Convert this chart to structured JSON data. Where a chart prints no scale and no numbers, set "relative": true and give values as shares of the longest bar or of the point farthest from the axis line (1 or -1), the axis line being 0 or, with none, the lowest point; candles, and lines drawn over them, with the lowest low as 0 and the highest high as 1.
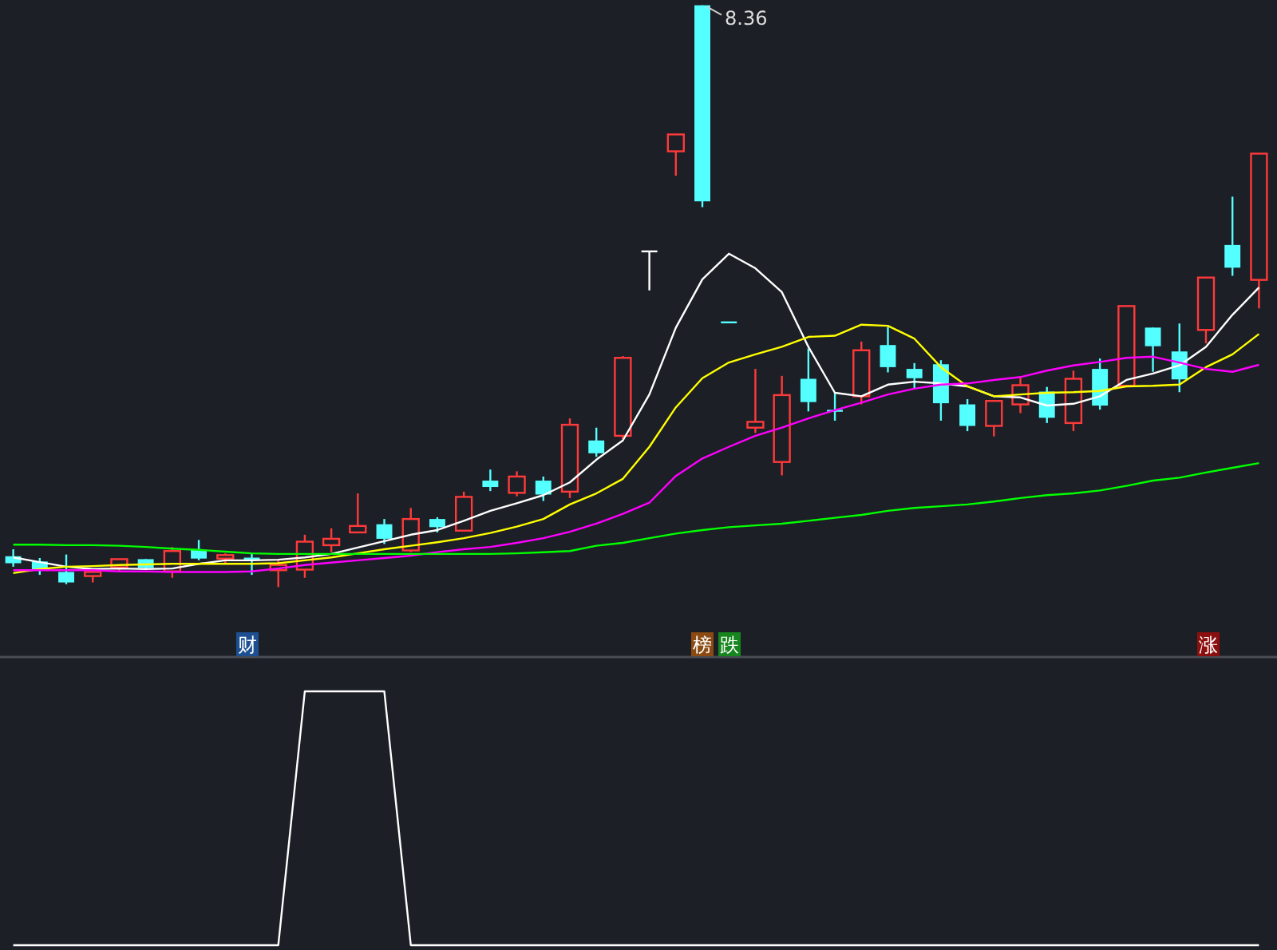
{
  "chart_data": [
    {
      "type": "candlestick",
      "relative": true,
      "categories": [
        null,
        null,
        null,
        null,
        null,
        null,
        null,
        null,
        null,
        null,
        null,
        null,
        null,
        null,
        null,
        null,
        null,
        null,
        null,
        null,
        null,
        null,
        null,
        null,
        null,
        null,
        null,
        null,
        null,
        null,
        null,
        null,
        null,
        null,
        null,
        null,
        null,
        null,
        null,
        null,
        null,
        null,
        null,
        null,
        null,
        null,
        null,
        null
      ],
      "ohlc": [
        [
          0.053,
          0.065,
          0.035,
          0.041
        ],
        [
          0.044,
          0.05,
          0.021,
          0.029
        ],
        [
          0.026,
          0.056,
          0.005,
          0.008
        ],
        [
          0.019,
          0.026,
          0.008,
          0.026
        ],
        [
          0.034,
          0.048,
          0.027,
          0.048
        ],
        [
          0.048,
          0.048,
          0.03,
          0.033
        ],
        [
          0.027,
          0.069,
          0.016,
          0.062
        ],
        [
          0.064,
          0.081,
          0.046,
          0.049
        ],
        [
          0.049,
          0.058,
          0.04,
          0.055
        ],
        [
          0.049,
          0.058,
          0.021,
          0.049
        ],
        [
          0.029,
          0.047,
          0,
          0.038
        ],
        [
          0.03,
          0.09,
          0.016,
          0.078
        ],
        [
          0.072,
          0.101,
          0.06,
          0.083
        ],
        [
          0.094,
          0.161,
          0.094,
          0.105
        ],
        [
          0.108,
          0.117,
          0.074,
          0.083
        ],
        [
          0.063,
          0.136,
          0.06,
          0.117
        ],
        [
          0.117,
          0.12,
          0.094,
          0.103
        ],
        [
          0.097,
          0.164,
          0.097,
          0.155
        ],
        [
          0.183,
          0.202,
          0.165,
          0.172
        ],
        [
          0.162,
          0.199,
          0.156,
          0.19
        ],
        [
          0.183,
          0.19,
          0.148,
          0.159
        ],
        [
          0.164,
          0.29,
          0.153,
          0.279
        ],
        [
          0.252,
          0.274,
          0.224,
          0.23
        ],
        [
          0.26,
          0.397,
          0.254,
          0.394
        ],
        [
          0.577,
          0.577,
          0.51,
          0.577
        ],
        [
          0.749,
          0.778,
          0.707,
          0.778
        ],
        [
          1,
          1,
          0.653,
          0.663
        ],
        [
          0.455,
          0.455,
          0.455,
          0.455
        ],
        [
          0.274,
          0.375,
          0.265,
          0.284
        ],
        [
          0.215,
          0.363,
          0.192,
          0.33
        ],
        [
          0.358,
          0.41,
          0.302,
          0.318
        ],
        [
          0.303,
          0.335,
          0.286,
          0.303
        ],
        [
          0.328,
          0.422,
          0.314,
          0.407
        ],
        [
          0.416,
          0.447,
          0.369,
          0.378
        ],
        [
          0.375,
          0.385,
          0.341,
          0.359
        ],
        [
          0.383,
          0.39,
          0.286,
          0.316
        ],
        [
          0.314,
          0.323,
          0.268,
          0.277
        ],
        [
          0.277,
          0.32,
          0.259,
          0.32
        ],
        [
          0.314,
          0.362,
          0.299,
          0.347
        ],
        [
          0.336,
          0.344,
          0.282,
          0.291
        ],
        [
          0.282,
          0.372,
          0.268,
          0.358
        ],
        [
          0.375,
          0.393,
          0.305,
          0.312
        ],
        [
          0.346,
          0.483,
          0.346,
          0.483
        ],
        [
          0.446,
          0.446,
          0.37,
          0.414
        ],
        [
          0.405,
          0.453,
          0.335,
          0.357
        ],
        [
          0.442,
          0.532,
          0.419,
          0.532
        ],
        [
          0.588,
          0.671,
          0.535,
          0.549
        ],
        [
          0.528,
          0.745,
          0.479,
          0.745
        ]
      ],
      "series": [
        {
          "type": "line",
          "color": "#ffffff",
          "values": [
            0.051,
            0.043,
            0.035,
            0.031,
            0.032,
            0.031,
            0.032,
            0.04,
            0.046,
            0.046,
            0.047,
            0.051,
            0.057,
            0.068,
            0.079,
            0.09,
            0.098,
            0.114,
            0.131,
            0.144,
            0.158,
            0.18,
            0.219,
            0.252,
            0.331,
            0.446,
            0.529,
            0.573,
            0.548,
            0.507,
            0.413,
            0.334,
            0.328,
            0.348,
            0.353,
            0.35,
            0.345,
            0.328,
            0.326,
            0.312,
            0.315,
            0.328,
            0.356,
            0.367,
            0.381,
            0.413,
            0.468,
            0.515
          ]
        },
        {
          "type": "line",
          "color": "#ffff00",
          "values": [
            0.024,
            0.031,
            0.035,
            0.036,
            0.038,
            0.039,
            0.04,
            0.04,
            0.04,
            0.04,
            0.041,
            0.046,
            0.051,
            0.058,
            0.065,
            0.071,
            0.077,
            0.084,
            0.093,
            0.104,
            0.117,
            0.142,
            0.161,
            0.186,
            0.241,
            0.309,
            0.359,
            0.386,
            0.4,
            0.413,
            0.43,
            0.432,
            0.451,
            0.449,
            0.427,
            0.378,
            0.345,
            0.328,
            0.331,
            0.334,
            0.335,
            0.337,
            0.345,
            0.346,
            0.348,
            0.378,
            0.4,
            0.435
          ]
        },
        {
          "type": "line",
          "color": "#ff00ff",
          "values": [
            0.029,
            0.029,
            0.029,
            0.029,
            0.027,
            0.027,
            0.026,
            0.026,
            0.026,
            0.027,
            0.032,
            0.038,
            0.042,
            0.046,
            0.05,
            0.054,
            0.06,
            0.065,
            0.069,
            0.076,
            0.084,
            0.095,
            0.109,
            0.126,
            0.145,
            0.191,
            0.221,
            0.241,
            0.26,
            0.274,
            0.29,
            0.304,
            0.317,
            0.331,
            0.341,
            0.348,
            0.35,
            0.356,
            0.361,
            0.372,
            0.381,
            0.387,
            0.394,
            0.396,
            0.386,
            0.375,
            0.37,
            0.382
          ]
        },
        {
          "type": "line",
          "color": "#00ff00",
          "values": [
            0.073,
            0.073,
            0.072,
            0.072,
            0.071,
            0.069,
            0.066,
            0.064,
            0.061,
            0.058,
            0.057,
            0.057,
            0.057,
            0.057,
            0.057,
            0.057,
            0.057,
            0.057,
            0.057,
            0.058,
            0.06,
            0.062,
            0.071,
            0.076,
            0.084,
            0.092,
            0.098,
            0.103,
            0.106,
            0.109,
            0.114,
            0.119,
            0.124,
            0.131,
            0.136,
            0.139,
            0.142,
            0.147,
            0.153,
            0.158,
            0.161,
            0.166,
            0.174,
            0.183,
            0.188,
            0.197,
            0.205,
            0.213
          ]
        }
      ],
      "annotations": [
        "8.36",
        "财",
        "榜",
        "跌",
        "涨"
      ]
    },
    {
      "type": "line",
      "relative": true,
      "color": "#ffffff",
      "categories": [
        null,
        null,
        null,
        null,
        null,
        null,
        null,
        null,
        null,
        null,
        null,
        null,
        null,
        null,
        null,
        null,
        null,
        null,
        null,
        null,
        null,
        null,
        null,
        null,
        null,
        null,
        null,
        null,
        null,
        null,
        null,
        null,
        null,
        null,
        null,
        null,
        null,
        null,
        null,
        null,
        null,
        null,
        null,
        null,
        null,
        null,
        null,
        null
      ],
      "values": [
        0,
        0,
        0,
        0,
        0,
        0,
        0,
        0,
        0,
        0,
        0,
        1,
        1,
        1,
        1,
        0,
        0,
        0,
        0,
        0,
        0,
        0,
        0,
        0,
        0,
        0,
        0,
        0,
        0,
        0,
        0,
        0,
        0,
        0,
        0,
        0,
        0,
        0,
        0,
        0,
        0,
        0,
        0,
        0,
        0,
        0,
        0,
        0
      ]
    }
  ]
}
